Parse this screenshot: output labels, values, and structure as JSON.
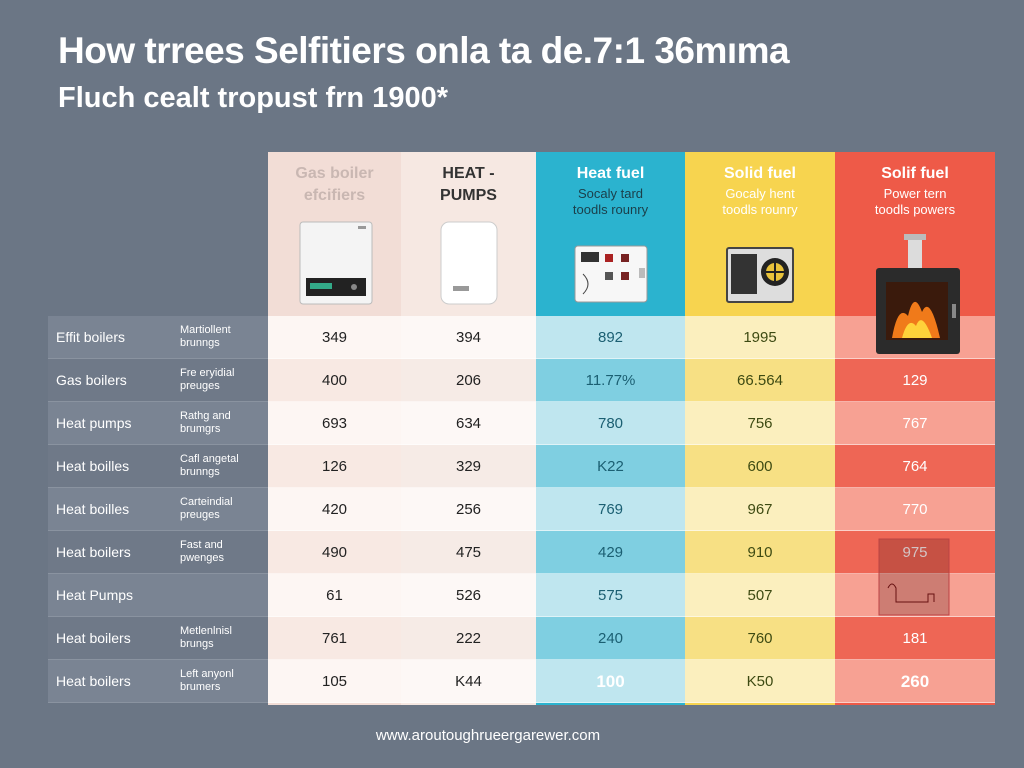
{
  "title": "How trrees Selfitiers onla ta de.7:1 36mıma",
  "subtitle": "Fluch cealt tropust frn 1900*",
  "footer": "www.aroutoughrueergarewer.com",
  "colors": {
    "background": "#6b7685",
    "col_gas": "#f2ddd6",
    "col_heat": "#f6e8e2",
    "col_fuel": "#2bb3cf",
    "col_solid": "#f7d44f",
    "col_solif": "#ee5a48"
  },
  "chart_data": {
    "type": "table",
    "columns": [
      {
        "title": "Gas boiler",
        "title2": "efcifiers",
        "sub": "",
        "sub2": "",
        "icon": "gas-boiler-icon"
      },
      {
        "title": "HEAT -",
        "title2": "PUMPS",
        "sub": "",
        "sub2": "",
        "icon": "heat-pump-icon"
      },
      {
        "title": "Heat fuel",
        "title2": "",
        "sub": "Socaly tard",
        "sub2": "toodls rounry",
        "icon": "control-panel-icon"
      },
      {
        "title": "Solid fuel",
        "title2": "",
        "sub": "Gocaly hent",
        "sub2": "toodls rounry",
        "icon": "solid-fuel-unit-icon"
      },
      {
        "title": "Solif fuel",
        "title2": "",
        "sub": "Power tern",
        "sub2": "toodls powers",
        "icon": "wood-stove-icon"
      }
    ],
    "rows": [
      {
        "label": "Effit boilers",
        "note": "Martiollent",
        "note2": "brunngs",
        "values": [
          "349",
          "394",
          "892",
          "1995",
          ""
        ]
      },
      {
        "label": "Gas boilers",
        "note": "Fre eryidial",
        "note2": "preuges",
        "values": [
          "400",
          "206",
          "11.77%",
          "66.564",
          "129"
        ]
      },
      {
        "label": "Heat pumps",
        "note": "Rathg and",
        "note2": "brumgrs",
        "values": [
          "693",
          "634",
          "780",
          "756",
          "767"
        ]
      },
      {
        "label": "Heat boilles",
        "note": "Cafl angetal",
        "note2": "brunngs",
        "values": [
          "126",
          "329",
          "K22",
          "600",
          "764"
        ]
      },
      {
        "label": "Heat boilles",
        "note": "Carteindial",
        "note2": "preuges",
        "values": [
          "420",
          "256",
          "769",
          "967",
          "770"
        ]
      },
      {
        "label": "Heat boilers",
        "note": "Fast and",
        "note2": "pwenges",
        "values": [
          "490",
          "475",
          "429",
          "910",
          "975"
        ]
      },
      {
        "label": "Heat Pumps",
        "note": "",
        "note2": "",
        "values": [
          "61",
          "526",
          "575",
          "507",
          ""
        ]
      },
      {
        "label": "Heat boilers",
        "note": "Metlenlnisl",
        "note2": "brungs",
        "values": [
          "761",
          "222",
          "240",
          "760",
          "181"
        ]
      },
      {
        "label": "Heat boilers",
        "note": "Left anyonl",
        "note2": "brumers",
        "values": [
          "105",
          "K44",
          "100",
          "K50",
          "260"
        ]
      }
    ]
  }
}
